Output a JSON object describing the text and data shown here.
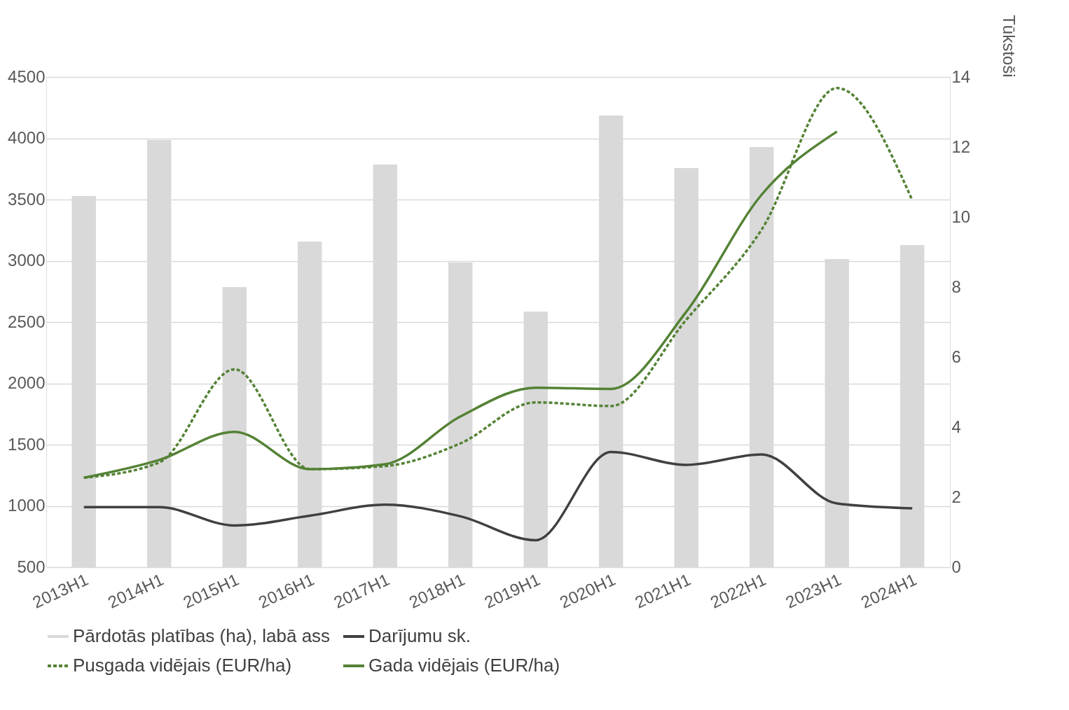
{
  "chart_data": {
    "type": "bar",
    "categories": [
      "2013H1",
      "2014H1",
      "2015H1",
      "2016H1",
      "2017H1",
      "2018H1",
      "2019H1",
      "2020H1",
      "2021H1",
      "2022H1",
      "2023H1",
      "2024H1"
    ],
    "series": [
      {
        "name": "Pārdotās platības (ha), labā ass",
        "axis": "y2",
        "color": "#d9d9d9",
        "values": [
          10.6,
          12.2,
          8.0,
          9.3,
          11.5,
          8.7,
          7.3,
          12.9,
          11.4,
          12.0,
          8.8,
          9.2
        ]
      },
      {
        "name": "Darījumu sk.",
        "type": "line",
        "line_style": "solid",
        "color": "#404040",
        "values": [
          990,
          990,
          840,
          920,
          1010,
          915,
          720,
          1440,
          1335,
          1420,
          1020,
          980
        ]
      },
      {
        "name": "Pusgada vidējais (EUR/ha)",
        "type": "line",
        "line_style": "dashed",
        "color": "#548235",
        "values": [
          1230,
          1355,
          2115,
          1300,
          1325,
          1510,
          1845,
          1815,
          2520,
          3255,
          4410,
          3495
        ]
      },
      {
        "name": "Gada vidējais (EUR/ha)",
        "type": "line",
        "line_style": "solid",
        "color": "#548235",
        "values": [
          1230,
          1375,
          1605,
          1300,
          1340,
          1730,
          1965,
          1955,
          2585,
          3540,
          4055,
          null
        ]
      }
    ],
    "ylim": [
      500,
      4500
    ],
    "yticks": [
      500,
      1000,
      1500,
      2000,
      2500,
      3000,
      3500,
      4000,
      4500
    ],
    "y2lim": [
      0,
      14
    ],
    "y2ticks": [
      0,
      2,
      4,
      6,
      8,
      10,
      12,
      14
    ],
    "y2label": "Tūkstoši",
    "grid": "y",
    "legend": "bottom"
  }
}
